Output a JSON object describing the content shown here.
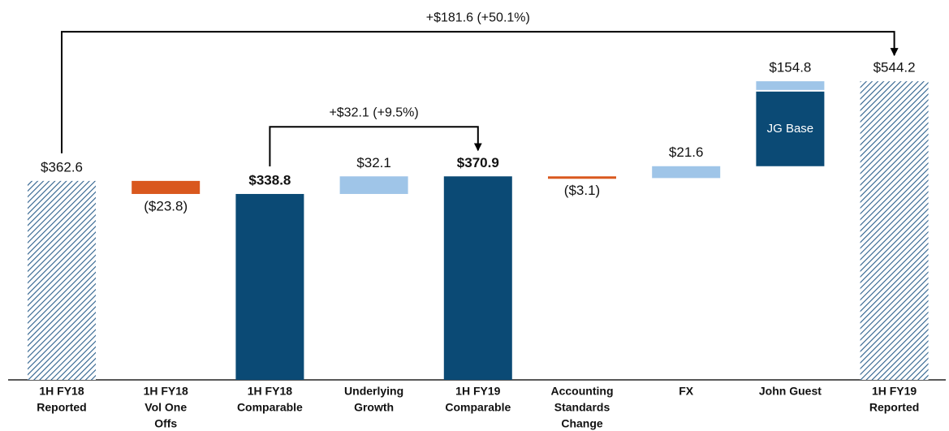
{
  "chart_data": {
    "type": "waterfall",
    "categories": [
      [
        "1H FY18",
        "Reported"
      ],
      [
        "1H FY18",
        "Vol One",
        "Offs"
      ],
      [
        "1H FY18",
        "Comparable"
      ],
      [
        "Underlying",
        "Growth"
      ],
      [
        "1H FY19",
        "Comparable"
      ],
      [
        "Accounting",
        "Standards",
        "Change"
      ],
      [
        "FX"
      ],
      [
        "John Guest"
      ],
      [
        "1H FY19",
        "Reported"
      ]
    ],
    "values": [
      362.6,
      -23.8,
      338.8,
      32.1,
      370.9,
      -3.1,
      21.6,
      154.8,
      544.2
    ],
    "value_labels": [
      "$362.6",
      "($23.8)",
      "$338.8",
      "$32.1",
      "$370.9",
      "($3.1)",
      "$21.6",
      "$154.8",
      "$544.2"
    ],
    "styles": [
      "hatched",
      "negative",
      "total",
      "positive",
      "total",
      "negative",
      "positive",
      "split",
      "hatched"
    ],
    "colors": {
      "hatched": "#2c5f8c",
      "negative": "#d9581e",
      "total": "#0b4a75",
      "positive": "#9fc5e8"
    },
    "segments": [
      {
        "name": "JG Base",
        "value": 136.0,
        "color": "#0b4a75"
      },
      {
        "value": 18.8,
        "color": "#9fc5e8"
      }
    ],
    "annotations": [
      {
        "text": "+$181.6 (+50.1%)",
        "from": 0,
        "to": 8
      },
      {
        "text": "+$32.1 (+9.5%)",
        "from": 2,
        "to": 4
      }
    ],
    "ylim": [
      0,
      600
    ]
  }
}
